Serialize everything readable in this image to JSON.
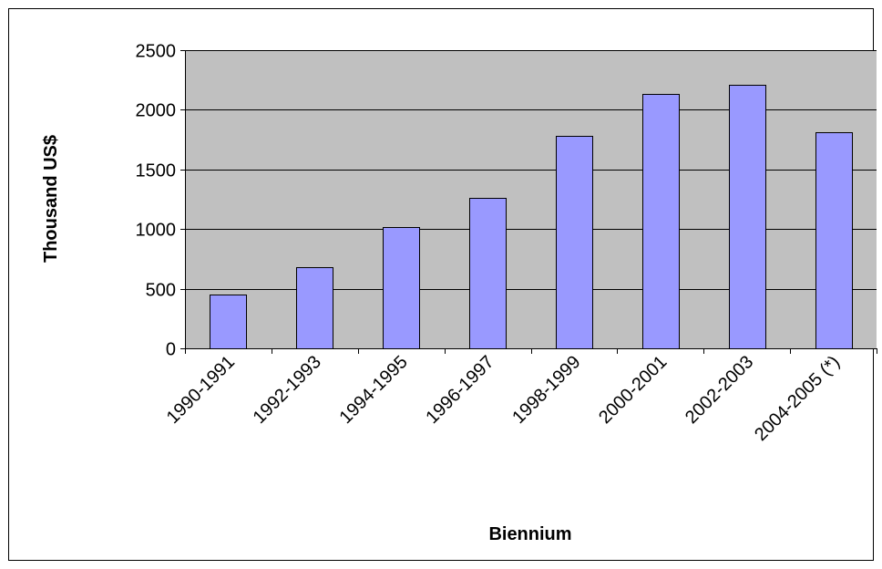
{
  "chart_data": {
    "type": "bar",
    "categories": [
      "1990-1991",
      "1992-1993",
      "1994-1995",
      "1996-1997",
      "1998-1999",
      "2000-2001",
      "2002-2003",
      "2004-2005 (*)"
    ],
    "values": [
      450,
      680,
      1015,
      1260,
      1780,
      2130,
      2210,
      1810
    ],
    "title": "",
    "xlabel": "Biennium",
    "ylabel": "Thousand US$",
    "ylim": [
      0,
      2500
    ],
    "yticks": [
      0,
      500,
      1000,
      1500,
      2000,
      2500
    ],
    "grid": true,
    "legend": "none",
    "colors": {
      "bar_fill": "#9999ff",
      "bar_stroke": "#000000",
      "plot_background": "#c0c0c0",
      "gridline": "#000000",
      "frame": "#000000"
    }
  }
}
